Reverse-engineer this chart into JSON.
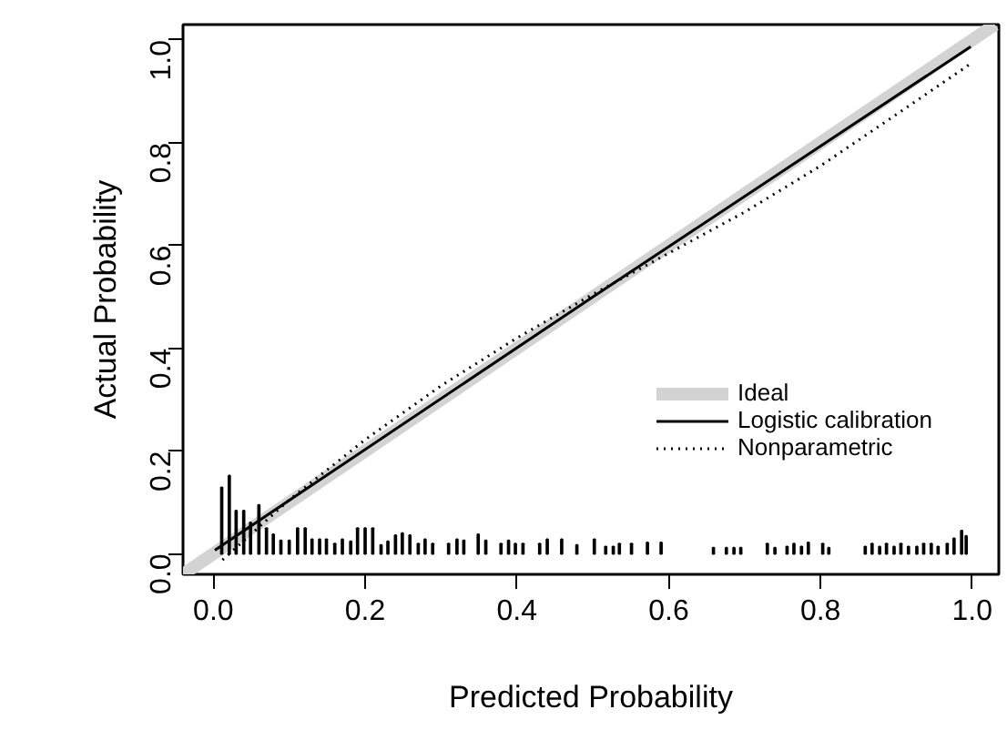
{
  "chart_data": {
    "type": "line",
    "xlabel": "Predicted Probability",
    "ylabel": "Actual Probability",
    "xlim": [
      -0.04,
      1.035
    ],
    "ylim": [
      -0.04,
      1.03
    ],
    "xticks": [
      {
        "value": 0,
        "label": "0.0"
      },
      {
        "value": 0.2,
        "label": "0.2"
      },
      {
        "value": 0.4,
        "label": "0.4"
      },
      {
        "value": 0.6,
        "label": "0.6"
      },
      {
        "value": 0.8,
        "label": "0.8"
      },
      {
        "value": 1,
        "label": "1.0"
      }
    ],
    "yticks": [
      {
        "value": 0,
        "label": "0.0"
      },
      {
        "value": 0.2,
        "label": "0.2"
      },
      {
        "value": 0.4,
        "label": "0.4"
      },
      {
        "value": 0.6,
        "label": "0.6"
      },
      {
        "value": 0.8,
        "label": "0.8"
      },
      {
        "value": 1,
        "label": "1.0"
      }
    ],
    "grid": false,
    "legend": "bottom right",
    "series": [
      {
        "name": "Ideal",
        "color": "#d3d3d3",
        "line_style": "solid",
        "x": [
          -0.04,
          1.03
        ],
        "values": [
          -0.04,
          1.03
        ]
      },
      {
        "name": "Logistic calibration",
        "color": "#000000",
        "line_style": "solid",
        "x": [
          0.002,
          0.5,
          0.998
        ],
        "values": [
          0.007,
          0.5,
          0.987
        ]
      },
      {
        "name": "Nonparametric",
        "color": "#000000",
        "line_style": "dotted",
        "x": [
          0.012,
          0.1,
          0.2,
          0.3,
          0.4,
          0.5,
          0.6,
          0.7,
          0.8,
          0.9,
          0.998
        ],
        "values": [
          -0.012,
          0.105,
          0.222,
          0.327,
          0.42,
          0.505,
          0.585,
          0.665,
          0.755,
          0.855,
          0.954
        ]
      },
      {
        "type": "bar",
        "color": "#000000",
        "x": [
          0.011,
          0.021,
          0.03,
          0.04,
          0.049,
          0.06,
          0.07,
          0.079,
          0.089,
          0.1,
          0.111,
          0.121,
          0.13,
          0.14,
          0.149,
          0.16,
          0.17,
          0.181,
          0.19,
          0.2,
          0.21,
          0.221,
          0.23,
          0.24,
          0.249,
          0.259,
          0.27,
          0.279,
          0.289,
          0.31,
          0.321,
          0.33,
          0.349,
          0.359,
          0.379,
          0.389,
          0.398,
          0.408,
          0.43,
          0.44,
          0.459,
          0.479,
          0.502,
          0.517,
          0.527,
          0.535,
          0.551,
          0.572,
          0.59,
          0.659,
          0.676,
          0.686,
          0.695,
          0.73,
          0.74,
          0.756,
          0.765,
          0.775,
          0.784,
          0.803,
          0.811,
          0.859,
          0.868,
          0.878,
          0.887,
          0.897,
          0.906,
          0.916,
          0.927,
          0.936,
          0.946,
          0.955,
          0.967,
          0.976,
          0.986,
          0.992
        ],
        "values": [
          0.129,
          0.152,
          0.084,
          0.084,
          0.061,
          0.095,
          0.05,
          0.038,
          0.026,
          0.026,
          0.05,
          0.05,
          0.028,
          0.028,
          0.028,
          0.02,
          0.028,
          0.024,
          0.05,
          0.05,
          0.05,
          0.017,
          0.024,
          0.036,
          0.04,
          0.036,
          0.02,
          0.028,
          0.02,
          0.02,
          0.028,
          0.026,
          0.038,
          0.026,
          0.02,
          0.026,
          0.02,
          0.02,
          0.02,
          0.028,
          0.028,
          0.017,
          0.028,
          0.014,
          0.014,
          0.02,
          0.02,
          0.022,
          0.022,
          0.012,
          0.012,
          0.012,
          0.012,
          0.02,
          0.012,
          0.014,
          0.02,
          0.014,
          0.022,
          0.02,
          0.012,
          0.014,
          0.02,
          0.014,
          0.02,
          0.014,
          0.02,
          0.014,
          0.014,
          0.02,
          0.02,
          0.014,
          0.02,
          0.03,
          0.045,
          0.035
        ]
      }
    ]
  }
}
